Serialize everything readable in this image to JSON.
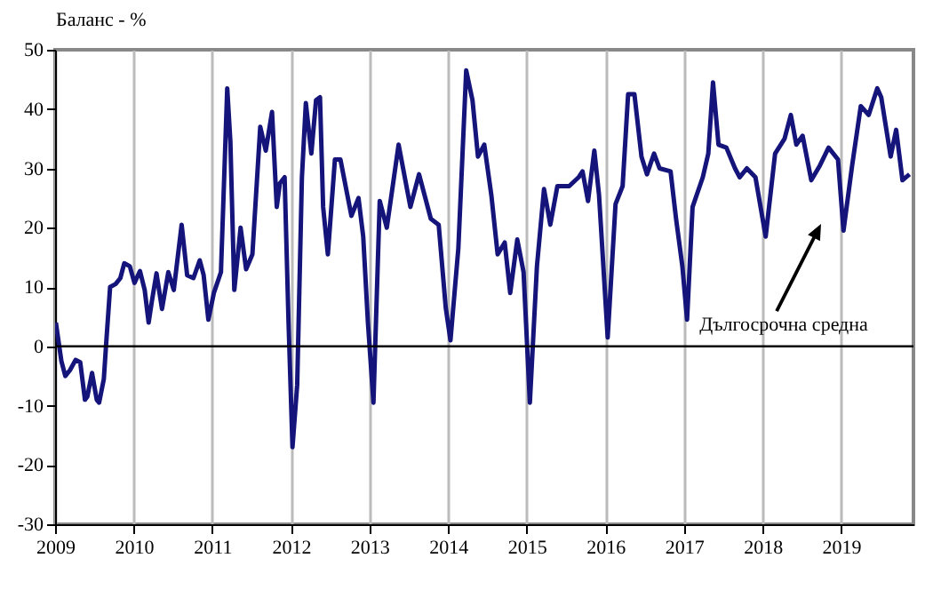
{
  "chart_data": {
    "type": "line",
    "ylabel": "Баланс - %",
    "x": [
      2009.01,
      2009.08,
      2009.13,
      2009.19,
      2009.26,
      2009.32,
      2009.38,
      2009.41,
      2009.47,
      2009.53,
      2009.56,
      2009.62,
      2009.65,
      2009.7,
      2009.77,
      2009.83,
      2009.88,
      2009.95,
      2010.01,
      2010.08,
      2010.14,
      2010.19,
      2010.23,
      2010.29,
      2010.36,
      2010.44,
      2010.51,
      2010.61,
      2010.68,
      2010.76,
      2010.84,
      2010.89,
      2010.95,
      2011.02,
      2011.11,
      2011.19,
      2011.23,
      2011.28,
      2011.36,
      2011.43,
      2011.51,
      2011.61,
      2011.68,
      2011.76,
      2011.82,
      2011.86,
      2011.92,
      2011.97,
      2012.02,
      2012.08,
      2012.14,
      2012.19,
      2012.26,
      2012.32,
      2012.37,
      2012.41,
      2012.47,
      2012.56,
      2012.63,
      2012.77,
      2012.86,
      2012.92,
      2012.98,
      2013.05,
      2013.13,
      2013.22,
      2013.37,
      2013.52,
      2013.63,
      2013.78,
      2013.88,
      2013.97,
      2014.03,
      2014.13,
      2014.23,
      2014.31,
      2014.38,
      2014.46,
      2014.55,
      2014.63,
      2014.72,
      2014.79,
      2014.88,
      2014.96,
      2015.04,
      2015.13,
      2015.22,
      2015.3,
      2015.39,
      2015.54,
      2015.66,
      2015.71,
      2015.78,
      2015.86,
      2015.92,
      2016.03,
      2016.13,
      2016.22,
      2016.29,
      2016.37,
      2016.46,
      2016.53,
      2016.62,
      2016.69,
      2016.83,
      2016.9,
      2016.98,
      2017.04,
      2017.11,
      2017.24,
      2017.31,
      2017.37,
      2017.44,
      2017.54,
      2017.65,
      2017.71,
      2017.8,
      2017.91,
      2018.04,
      2018.16,
      2018.28,
      2018.36,
      2018.43,
      2018.51,
      2018.62,
      2018.73,
      2018.84,
      2018.96,
      2019.03,
      2019.14,
      2019.25,
      2019.35,
      2019.46,
      2019.51,
      2019.57,
      2019.63,
      2019.7,
      2019.78,
      2019.87
    ],
    "series": [
      {
        "color": "#14147a",
        "values": [
          4,
          -2.5,
          -5,
          -4,
          -2.3,
          -2.7,
          -9,
          -8.5,
          -4.5,
          -9,
          -9.5,
          -5.5,
          0.5,
          10,
          10.5,
          11.5,
          14,
          13.5,
          10.7,
          12.7,
          9.5,
          4,
          7.5,
          12.3,
          6.3,
          12.5,
          9.5,
          20.5,
          12,
          11.5,
          14.5,
          12,
          4.5,
          9,
          12.5,
          43.5,
          34.5,
          9.5,
          20,
          13,
          15.5,
          37,
          33,
          39.5,
          23.5,
          27.5,
          28.5,
          4,
          -17,
          -6.5,
          28.5,
          41,
          32.5,
          41.5,
          42,
          23.5,
          15.5,
          31.5,
          31.5,
          22,
          25,
          18.5,
          4,
          -9.5,
          24.5,
          20,
          34,
          23.5,
          29,
          21.5,
          20.5,
          6.5,
          1,
          16.5,
          46.5,
          41.5,
          32,
          34,
          25.5,
          15.5,
          17.5,
          9,
          18,
          12.5,
          -9.5,
          13.5,
          26.5,
          20.5,
          27,
          27,
          28.5,
          29.5,
          24.5,
          33,
          25.5,
          1.5,
          24,
          27,
          42.5,
          42.5,
          32,
          29,
          32.5,
          30,
          29.5,
          21.5,
          13.5,
          4.5,
          23.5,
          28.5,
          32.5,
          44.5,
          34,
          33.5,
          30,
          28.5,
          30,
          28.5,
          18.5,
          32.5,
          35,
          39,
          34,
          35.5,
          28,
          30.5,
          33.5,
          31.5,
          19.5,
          30.5,
          40.5,
          39,
          43.5,
          42,
          37,
          32,
          36.5,
          28,
          29
        ]
      }
    ],
    "xlim": [
      2009,
      2019.92
    ],
    "xticks": [
      2009,
      2010,
      2011,
      2012,
      2013,
      2014,
      2015,
      2016,
      2017,
      2018,
      2019
    ],
    "ylim": [
      -30,
      50
    ],
    "yticks": [
      -30,
      -20,
      -10,
      0,
      10,
      20,
      30,
      40,
      50
    ],
    "grid": "x",
    "ref_lines": [
      {
        "axis": "y",
        "value": 0,
        "color": "#000000"
      }
    ],
    "annotations": [
      "Дългосрочна средна"
    ]
  }
}
